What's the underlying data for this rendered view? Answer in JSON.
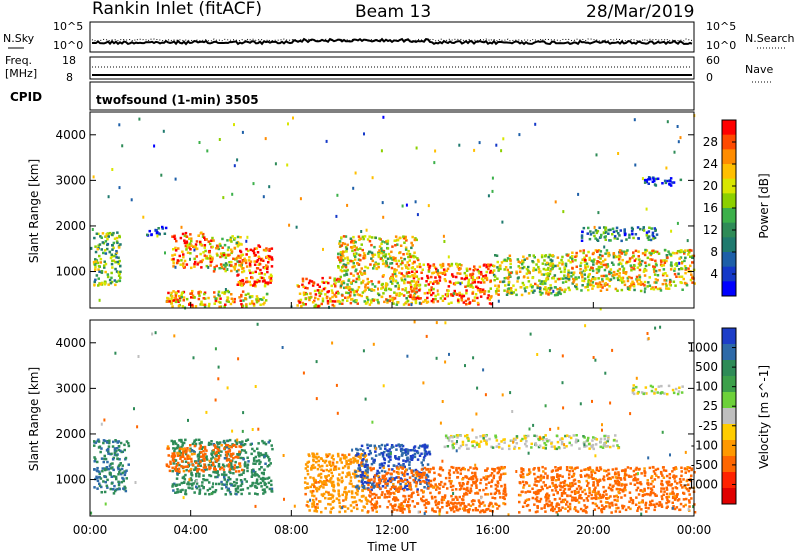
{
  "header": {
    "station": "Rankin Inlet (fitACF)",
    "beam": "Beam 13",
    "date": "28/Mar/2019"
  },
  "noise_panel": {
    "left_label": "N.Sky",
    "right_label": "N.Search",
    "left_ticks": [
      "10^5",
      "10^0"
    ],
    "right_ticks": [
      "10^5",
      "10^0"
    ]
  },
  "freq_panel": {
    "left_label_top": "Freq.",
    "left_label_unit": "[MHz]",
    "left_ticks": [
      "18",
      "8"
    ],
    "right_label": "Nave",
    "right_ticks": [
      "60",
      "0"
    ]
  },
  "cpid_panel": {
    "label": "CPID",
    "text": "twofsound (1-min) 3505"
  },
  "chart_data": [
    {
      "type": "heatmap",
      "name": "power",
      "ylabel": "Slant Range [km]",
      "yticks": [
        1000,
        2000,
        3000,
        4000
      ],
      "ylim": [
        200,
        4500
      ],
      "colorbar_label": "Power [dB]",
      "colorbar_ticks": [
        "28",
        "24",
        "20",
        "16",
        "12",
        "8",
        "4"
      ],
      "colorbar_colors": [
        "#ff0000",
        "#ff4a00",
        "#ff8c00",
        "#ffbf00",
        "#d8e600",
        "#8cd000",
        "#3cb04a",
        "#2e8b57",
        "#1f7a6e",
        "#1d5fa8",
        "#1438c8",
        "#0000ff"
      ],
      "regions": [
        {
          "t0": 0.1,
          "t1": 1.2,
          "r0": 700,
          "r1": 1900,
          "v": 16
        },
        {
          "t0": 2.2,
          "t1": 3.0,
          "r0": 1800,
          "r1": 2050,
          "v": 6
        },
        {
          "t0": 3.2,
          "t1": 4.8,
          "r0": 1100,
          "r1": 1900,
          "v": 24
        },
        {
          "t0": 4.8,
          "t1": 6.0,
          "r0": 1000,
          "r1": 1800,
          "v": 20
        },
        {
          "t0": 5.8,
          "t1": 7.2,
          "r0": 700,
          "r1": 1600,
          "v": 26
        },
        {
          "t0": 3.0,
          "t1": 7.0,
          "r0": 250,
          "r1": 600,
          "v": 22
        },
        {
          "t0": 8.2,
          "t1": 9.8,
          "r0": 250,
          "r1": 900,
          "v": 24
        },
        {
          "t0": 9.8,
          "t1": 13.0,
          "r0": 300,
          "r1": 1800,
          "v": 20
        },
        {
          "t0": 12.5,
          "t1": 16.0,
          "r0": 300,
          "r1": 1200,
          "v": 24
        },
        {
          "t0": 16.0,
          "t1": 19.0,
          "r0": 500,
          "r1": 1400,
          "v": 18
        },
        {
          "t0": 19.0,
          "t1": 24.0,
          "r0": 600,
          "r1": 1500,
          "v": 20
        },
        {
          "t0": 19.5,
          "t1": 22.5,
          "r0": 1700,
          "r1": 2000,
          "v": 10
        },
        {
          "t0": 22.0,
          "t1": 23.5,
          "r0": 2900,
          "r1": 3100,
          "v": 6
        }
      ]
    },
    {
      "type": "heatmap",
      "name": "velocity",
      "ylabel": "Slant Range [km]",
      "yticks": [
        1000,
        2000,
        3000,
        4000
      ],
      "ylim": [
        200,
        4500
      ],
      "colorbar_label": "Velocity [m s^-1]",
      "colorbar_ticks": [
        "1000",
        "500",
        "100",
        "25",
        "-25",
        "-100",
        "-500",
        "-1000"
      ],
      "colorbar_colors": [
        "#1d3ec8",
        "#2e6aa8",
        "#2e8b57",
        "#3ca04a",
        "#6dd13a",
        "#bfbfbf",
        "#ffcc00",
        "#ff9900",
        "#ff6600",
        "#ff2200",
        "#e00000"
      ],
      "regions": [
        {
          "t0": 0.1,
          "t1": 1.5,
          "r0": 700,
          "r1": 1900,
          "v": 300
        },
        {
          "t0": 3.2,
          "t1": 7.2,
          "r0": 700,
          "r1": 1900,
          "v": 250
        },
        {
          "t0": 3.0,
          "t1": 6.0,
          "r0": 1200,
          "r1": 1800,
          "v": -300
        },
        {
          "t0": 8.5,
          "t1": 11.0,
          "r0": 300,
          "r1": 1600,
          "v": -200
        },
        {
          "t0": 10.5,
          "t1": 13.5,
          "r0": 800,
          "r1": 1800,
          "v": 600
        },
        {
          "t0": 11.0,
          "t1": 16.5,
          "r0": 300,
          "r1": 1300,
          "v": -300
        },
        {
          "t0": 17.0,
          "t1": 24.0,
          "r0": 300,
          "r1": 1300,
          "v": -300
        },
        {
          "t0": 14.0,
          "t1": 21.0,
          "r0": 1700,
          "r1": 2000,
          "v": 0
        },
        {
          "t0": 21.5,
          "t1": 23.5,
          "r0": 2900,
          "r1": 3100,
          "v": 0
        }
      ]
    }
  ],
  "time_axis": {
    "ticks": [
      "00:00",
      "04:00",
      "08:00",
      "12:00",
      "16:00",
      "20:00",
      "00:00"
    ],
    "xlabel": "Time UT"
  }
}
